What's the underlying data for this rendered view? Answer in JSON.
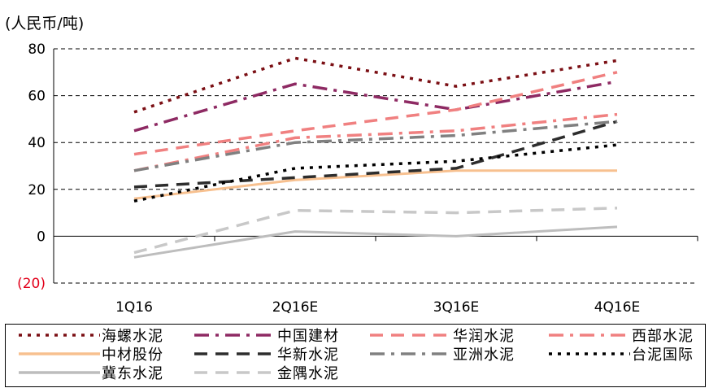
{
  "chart_data": {
    "type": "line",
    "ylabel": "(人民币/吨)",
    "ylim": [
      -20,
      80
    ],
    "yticks": [
      80,
      60,
      40,
      20,
      0,
      -20
    ],
    "ytick_labels": [
      "80",
      "60",
      "40",
      "20",
      "0",
      "(20)"
    ],
    "negative_tick_color": "#e2001a",
    "categories": [
      "1Q16",
      "2Q16E",
      "3Q16E",
      "4Q16E"
    ],
    "grid": "horizontal dashed",
    "legend_position": "bottom",
    "series": [
      {
        "name": "海螺水泥",
        "values": [
          53,
          76,
          64,
          75
        ],
        "color": "#7b0f14",
        "style": "dotted"
      },
      {
        "name": "中国建材",
        "values": [
          45,
          65,
          54,
          66
        ],
        "color": "#8e2a63",
        "style": "dashdot"
      },
      {
        "name": "华润水泥",
        "values": [
          35,
          45,
          54,
          70
        ],
        "color": "#f08080",
        "style": "dashed"
      },
      {
        "name": "西部水泥",
        "values": [
          28,
          42,
          45,
          52
        ],
        "color": "#f08080",
        "style": "dashdot"
      },
      {
        "name": "中材股份",
        "values": [
          16,
          24,
          28,
          28
        ],
        "color": "#f7c08f",
        "style": "solid"
      },
      {
        "name": "华新水泥",
        "values": [
          21,
          25,
          29,
          49
        ],
        "color": "#2d2d2d",
        "style": "dashed"
      },
      {
        "name": "亚洲水泥",
        "values": [
          28,
          40,
          43,
          49
        ],
        "color": "#808080",
        "style": "dashdot"
      },
      {
        "name": "台泥国际",
        "values": [
          15,
          29,
          32,
          39
        ],
        "color": "#000000",
        "style": "dotted"
      },
      {
        "name": "冀东水泥",
        "values": [
          -9,
          2,
          0,
          4
        ],
        "color": "#bdbdbd",
        "style": "solid"
      },
      {
        "name": "金隅水泥",
        "values": [
          -7,
          11,
          10,
          12
        ],
        "color": "#c8c8c8",
        "style": "dashed"
      }
    ]
  }
}
